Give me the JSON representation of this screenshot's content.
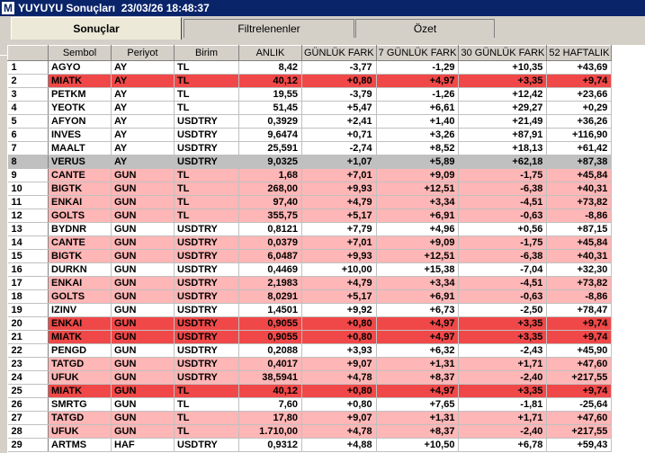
{
  "window": {
    "app_icon": "M",
    "title": "YUYUYU Sonuçları  23/03/26 18:48:37"
  },
  "tabs": [
    {
      "label": "Sonuçlar",
      "active": true
    },
    {
      "label": "Filtrelenenler",
      "active": false
    },
    {
      "label": "Özet",
      "active": false
    }
  ],
  "table": {
    "headers": [
      "",
      "Sembol",
      "Periyot",
      "Birim",
      "ANLIK",
      "GÜNLÜK FARK",
      "7 GÜNLÜK FARK",
      "30 GÜNLÜK FARK",
      "52 HAFTALIK"
    ],
    "colors": {
      "pink": "#ffb6b6",
      "red": "#f04848",
      "grey": "#c0c0c0",
      "white": "#ffffff"
    },
    "rows": [
      {
        "i": "1",
        "s": "AGYO",
        "p": "AY",
        "b": "TL",
        "a": "8,42",
        "g": "-3,77",
        "w": "-1,29",
        "m": "+10,35",
        "y": "+43,69",
        "c": "white"
      },
      {
        "i": "2",
        "s": "MIATK",
        "p": "AY",
        "b": "TL",
        "a": "40,12",
        "g": "+0,80",
        "w": "+4,97",
        "m": "+3,35",
        "y": "+9,74",
        "c": "red"
      },
      {
        "i": "3",
        "s": "PETKM",
        "p": "AY",
        "b": "TL",
        "a": "19,55",
        "g": "-3,79",
        "w": "-1,26",
        "m": "+12,42",
        "y": "+23,66",
        "c": "white"
      },
      {
        "i": "4",
        "s": "YEOTK",
        "p": "AY",
        "b": "TL",
        "a": "51,45",
        "g": "+5,47",
        "w": "+6,61",
        "m": "+29,27",
        "y": "+0,29",
        "c": "white"
      },
      {
        "i": "5",
        "s": "AFYON",
        "p": "AY",
        "b": "USDTRY",
        "a": "0,3929",
        "g": "+2,41",
        "w": "+1,40",
        "m": "+21,49",
        "y": "+36,26",
        "c": "white"
      },
      {
        "i": "6",
        "s": "INVES",
        "p": "AY",
        "b": "USDTRY",
        "a": "9,6474",
        "g": "+0,71",
        "w": "+3,26",
        "m": "+87,91",
        "y": "+116,90",
        "c": "white"
      },
      {
        "i": "7",
        "s": "MAALT",
        "p": "AY",
        "b": "USDTRY",
        "a": "25,591",
        "g": "-2,74",
        "w": "+8,52",
        "m": "+18,13",
        "y": "+61,42",
        "c": "white"
      },
      {
        "i": "8",
        "s": "VERUS",
        "p": "AY",
        "b": "USDTRY",
        "a": "9,0325",
        "g": "+1,07",
        "w": "+5,89",
        "m": "+62,18",
        "y": "+87,38",
        "c": "grey"
      },
      {
        "i": "9",
        "s": "CANTE",
        "p": "GUN",
        "b": "TL",
        "a": "1,68",
        "g": "+7,01",
        "w": "+9,09",
        "m": "-1,75",
        "y": "+45,84",
        "c": "pink"
      },
      {
        "i": "10",
        "s": "BIGTK",
        "p": "GUN",
        "b": "TL",
        "a": "268,00",
        "g": "+9,93",
        "w": "+12,51",
        "m": "-6,38",
        "y": "+40,31",
        "c": "pink"
      },
      {
        "i": "11",
        "s": "ENKAI",
        "p": "GUN",
        "b": "TL",
        "a": "97,40",
        "g": "+4,79",
        "w": "+3,34",
        "m": "-4,51",
        "y": "+73,82",
        "c": "pink"
      },
      {
        "i": "12",
        "s": "GOLTS",
        "p": "GUN",
        "b": "TL",
        "a": "355,75",
        "g": "+5,17",
        "w": "+6,91",
        "m": "-0,63",
        "y": "-8,86",
        "c": "pink"
      },
      {
        "i": "13",
        "s": "BYDNR",
        "p": "GUN",
        "b": "USDTRY",
        "a": "0,8121",
        "g": "+7,79",
        "w": "+4,96",
        "m": "+0,56",
        "y": "+87,15",
        "c": "white"
      },
      {
        "i": "14",
        "s": "CANTE",
        "p": "GUN",
        "b": "USDTRY",
        "a": "0,0379",
        "g": "+7,01",
        "w": "+9,09",
        "m": "-1,75",
        "y": "+45,84",
        "c": "pink"
      },
      {
        "i": "15",
        "s": "BIGTK",
        "p": "GUN",
        "b": "USDTRY",
        "a": "6,0487",
        "g": "+9,93",
        "w": "+12,51",
        "m": "-6,38",
        "y": "+40,31",
        "c": "pink"
      },
      {
        "i": "16",
        "s": "DURKN",
        "p": "GUN",
        "b": "USDTRY",
        "a": "0,4469",
        "g": "+10,00",
        "w": "+15,38",
        "m": "-7,04",
        "y": "+32,30",
        "c": "white"
      },
      {
        "i": "17",
        "s": "ENKAI",
        "p": "GUN",
        "b": "USDTRY",
        "a": "2,1983",
        "g": "+4,79",
        "w": "+3,34",
        "m": "-4,51",
        "y": "+73,82",
        "c": "pink"
      },
      {
        "i": "18",
        "s": "GOLTS",
        "p": "GUN",
        "b": "USDTRY",
        "a": "8,0291",
        "g": "+5,17",
        "w": "+6,91",
        "m": "-0,63",
        "y": "-8,86",
        "c": "pink"
      },
      {
        "i": "19",
        "s": "IZINV",
        "p": "GUN",
        "b": "USDTRY",
        "a": "1,4501",
        "g": "+9,92",
        "w": "+6,73",
        "m": "-2,50",
        "y": "+78,47",
        "c": "white"
      },
      {
        "i": "20",
        "s": "ENKAI",
        "p": "GUN",
        "b": "USDTRY",
        "a": "0,9055",
        "g": "+0,80",
        "w": "+4,97",
        "m": "+3,35",
        "y": "+9,74",
        "c": "red"
      },
      {
        "i": "21",
        "s": "MIATK",
        "p": "GUN",
        "b": "USDTRY",
        "a": "0,9055",
        "g": "+0,80",
        "w": "+4,97",
        "m": "+3,35",
        "y": "+9,74",
        "c": "red"
      },
      {
        "i": "22",
        "s": "PENGD",
        "p": "GUN",
        "b": "USDTRY",
        "a": "0,2088",
        "g": "+3,93",
        "w": "+6,32",
        "m": "-2,43",
        "y": "+45,90",
        "c": "white"
      },
      {
        "i": "23",
        "s": "TATGD",
        "p": "GUN",
        "b": "USDTRY",
        "a": "0,4017",
        "g": "+9,07",
        "w": "+1,31",
        "m": "+1,71",
        "y": "+47,60",
        "c": "pink"
      },
      {
        "i": "24",
        "s": "UFUK",
        "p": "GUN",
        "b": "USDTRY",
        "a": "38,5941",
        "g": "+4,78",
        "w": "+8,37",
        "m": "-2,40",
        "y": "+217,55",
        "c": "pink"
      },
      {
        "i": "25",
        "s": "MIATK",
        "p": "GUN",
        "b": "TL",
        "a": "40,12",
        "g": "+0,80",
        "w": "+4,97",
        "m": "+3,35",
        "y": "+9,74",
        "c": "red"
      },
      {
        "i": "26",
        "s": "SMRTG",
        "p": "GUN",
        "b": "TL",
        "a": "7,60",
        "g": "+0,80",
        "w": "+7,65",
        "m": "-1,81",
        "y": "-25,64",
        "c": "white"
      },
      {
        "i": "27",
        "s": "TATGD",
        "p": "GUN",
        "b": "TL",
        "a": "17,80",
        "g": "+9,07",
        "w": "+1,31",
        "m": "+1,71",
        "y": "+47,60",
        "c": "pink"
      },
      {
        "i": "28",
        "s": "UFUK",
        "p": "GUN",
        "b": "TL",
        "a": "1.710,00",
        "g": "+4,78",
        "w": "+8,37",
        "m": "-2,40",
        "y": "+217,55",
        "c": "pink"
      },
      {
        "i": "29",
        "s": "ARTMS",
        "p": "HAF",
        "b": "USDTRY",
        "a": "0,9312",
        "g": "+4,88",
        "w": "+10,50",
        "m": "+6,78",
        "y": "+59,43",
        "c": "white"
      }
    ]
  }
}
